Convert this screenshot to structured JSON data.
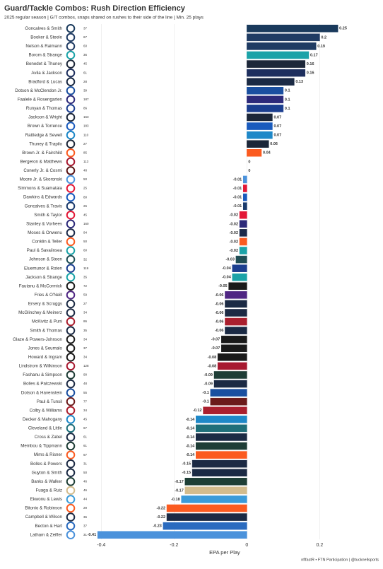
{
  "chart_data": {
    "type": "bar",
    "orientation": "horizontal",
    "title": "Guard/Tackle Combos: Rush Direction Efficiency",
    "subtitle": "2025 regular season | G/T combos, snaps shared on rushes to their side of the line | Min. 25 plays",
    "x_label": "EPA per Play",
    "caption": "nflfastR • FTN Participation | @tucknellsports",
    "categories": [
      "Goncalves & Smith",
      "Booker & Steele",
      "Nelson & Raimann",
      "Borom & Strange",
      "Benedet & Thuney",
      "Avila & Jackson",
      "Bradford & Lucas",
      "Dotson & McClendon Jr.",
      "Faalele & Rosengarten",
      "Runyan & Thomas",
      "Jackson & Wright",
      "Brown & Torrence",
      "Rattledge & Sewell",
      "Thuney & Trapilo",
      "Brown Jr. & Fairchild",
      "Bergeron & Matthews",
      "Conerly Jr. & Cosmi",
      "Moore Jr. & Skoronski",
      "Simmons & Suamataia",
      "Dawkins & Edwards",
      "Goncalves & Travis",
      "Smith & Taylor",
      "Stanley & Vorhees",
      "Moses & Onwenu",
      "Conklin & Teller",
      "Paul & Savaiinsea",
      "Johnson & Steen",
      "Eluemunor & Roten",
      "Jackson & Strange",
      "Fautanu & McCormick",
      "Fries & O'Neill",
      "Ersery & Scruggs",
      "McGlinchey & Meinerz",
      "McKivitz & Puni",
      "Smith & Thomas",
      "Glaze & Powers-Johnson",
      "Jones & Seumalo",
      "Howard & Ingram",
      "Lindstrom & Wilkinson",
      "Fashanu & Simpson",
      "Bolles & Palczewski",
      "Dotson & Havenstein",
      "Paul & Tunsil",
      "Colby & Williams",
      "Decker & Mahogany",
      "Cleveland & Little",
      "Cross & Zabel",
      "Membou & Tippmann",
      "Mims & Risner",
      "Bolles & Powers",
      "Guyton & Smith",
      "Banks & Walker",
      "Fuaga & Ruiz",
      "Ekwonu & Lewis",
      "Bitonio & Robinson",
      "Campbell & Wilson",
      "Becton & Hart",
      "Latham & Zeifler"
    ],
    "snaps": [
      37,
      67,
      60,
      36,
      45,
      61,
      28,
      39,
      187,
      86,
      163,
      183,
      110,
      27,
      85,
      113,
      48,
      50,
      25,
      80,
      26,
      45,
      160,
      94,
      50,
      60,
      32,
      119,
      35,
      72,
      59,
      27,
      34,
      86,
      35,
      34,
      37,
      34,
      128,
      90,
      48,
      55,
      77,
      34,
      45,
      67,
      61,
      61,
      67,
      31,
      50,
      46,
      46,
      44,
      29,
      36,
      37,
      31
    ],
    "values": [
      0.25,
      0.2,
      0.19,
      0.17,
      0.16,
      0.16,
      0.13,
      0.1,
      0.1,
      0.1,
      0.07,
      0.07,
      0.07,
      0.06,
      0.04,
      0,
      0,
      -0.01,
      -0.01,
      -0.01,
      -0.01,
      -0.02,
      -0.02,
      -0.02,
      -0.02,
      -0.02,
      -0.03,
      -0.04,
      -0.04,
      -0.05,
      -0.06,
      -0.06,
      -0.06,
      -0.06,
      -0.06,
      -0.07,
      -0.07,
      -0.08,
      -0.08,
      -0.09,
      -0.09,
      -0.1,
      -0.1,
      -0.12,
      -0.14,
      -0.14,
      -0.14,
      -0.14,
      -0.14,
      -0.15,
      -0.15,
      -0.17,
      -0.17,
      -0.18,
      -0.22,
      -0.22,
      -0.23,
      -0.41
    ],
    "colors": [
      "#1a3a5c",
      "#1f3b63",
      "#1f3b63",
      "#1ba3a8",
      "#1c2739",
      "#1e2f5e",
      "#1b2a44",
      "#1a4fa0",
      "#2d2a7a",
      "#1b3e8f",
      "#1c2739",
      "#1a5bbd",
      "#1e88c8",
      "#1c2739",
      "#fb5b20",
      "#a71930",
      "#5a1414",
      "#4b92db",
      "#e31837",
      "#1a5bbd",
      "#1a3a6c",
      "#e31837",
      "#2d2a7a",
      "#1c2a4a",
      "#fb5b20",
      "#1ba3a8",
      "#1e4d54",
      "#1b3e8f",
      "#1ba3a8",
      "#1a1a1a",
      "#4f2683",
      "#1b2a44",
      "#1c2a44",
      "#aa1f2e",
      "#1b2a44",
      "#1a1a1a",
      "#1a1a1a",
      "#1a1a1a",
      "#a71930",
      "#1e3d36",
      "#1c2a44",
      "#1a4fa0",
      "#6b1a1a",
      "#aa1f2e",
      "#1e88c8",
      "#1f6f7a",
      "#1b2a44",
      "#1e3d36",
      "#fb5b20",
      "#1c2a44",
      "#1b2a44",
      "#1e3f36",
      "#d3bc8d",
      "#3b9bd9",
      "#fb5b20",
      "#1b2a44",
      "#2a6bbf",
      "#4b92db"
    ],
    "xlim": [
      -0.42,
      0.37
    ],
    "xticks": [
      -0.4,
      -0.2,
      0,
      0.2
    ],
    "grid": true
  }
}
